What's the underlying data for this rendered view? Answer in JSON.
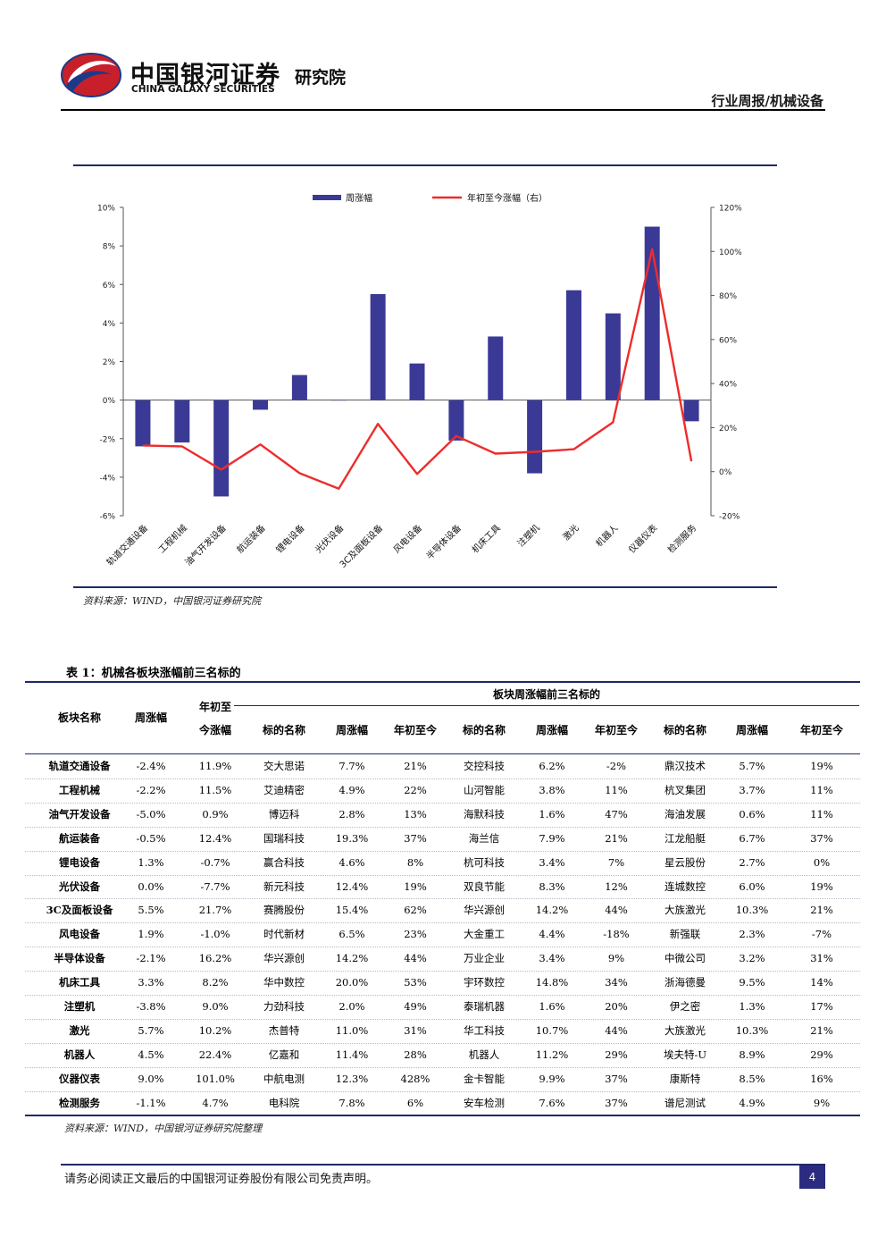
{
  "header": {
    "company_cn": "中国银河证券",
    "company_en": "CHINA GALAXY SECURITIES",
    "institute": "研究院",
    "doc_type": "行业周报/机械设备"
  },
  "chart_data": {
    "type": "bar",
    "categories": [
      "轨道交通设备",
      "工程机械",
      "油气开发设备",
      "航运装备",
      "锂电设备",
      "光伏设备",
      "3C及面板设备",
      "风电设备",
      "半导体设备",
      "机床工具",
      "注塑机",
      "激光",
      "机器人",
      "仪器仪表",
      "检测服务"
    ],
    "series": [
      {
        "name": "周涨幅",
        "type": "bar",
        "axis": "left",
        "color": "#3a3a96",
        "values": [
          -2.4,
          -2.2,
          -5.0,
          -0.5,
          1.3,
          0.0,
          5.5,
          1.9,
          -2.1,
          3.3,
          -3.8,
          5.7,
          4.5,
          9.0,
          -1.1
        ]
      },
      {
        "name": "年初至今涨幅（右）",
        "type": "line",
        "axis": "right",
        "color": "#ee2c2c",
        "values": [
          11.9,
          11.5,
          0.9,
          12.4,
          -0.7,
          -7.7,
          21.7,
          -1.0,
          16.2,
          8.2,
          9.0,
          10.2,
          22.4,
          101.0,
          4.7
        ]
      }
    ],
    "ylim": [
      -6,
      10
    ],
    "yticks": [
      "10%",
      "8%",
      "6%",
      "4%",
      "2%",
      "0%",
      "-2%",
      "-4%",
      "-6%"
    ],
    "y2lim": [
      -20,
      120
    ],
    "y2ticks": [
      "120%",
      "100%",
      "80%",
      "60%",
      "40%",
      "20%",
      "0%",
      "-20%"
    ],
    "legend": "top-center",
    "grid": false
  },
  "chart_source": "资料来源：WIND，中国银河证券研究院",
  "table": {
    "title": "表 1：机械各板块涨幅前三名标的",
    "group_header": "板块周涨幅前三名标的",
    "headers": [
      "板块名称",
      "周涨幅",
      "年初至今涨幅",
      "标的名称",
      "周涨幅",
      "年初至今",
      "标的名称",
      "周涨幅",
      "年初至今",
      "标的名称",
      "周涨幅",
      "年初至今"
    ],
    "rows": [
      [
        "轨道交通设备",
        "-2.4%",
        "11.9%",
        "交大思诺",
        "7.7%",
        "21%",
        "交控科技",
        "6.2%",
        "-2%",
        "鼎汉技术",
        "5.7%",
        "19%"
      ],
      [
        "工程机械",
        "-2.2%",
        "11.5%",
        "艾迪精密",
        "4.9%",
        "22%",
        "山河智能",
        "3.8%",
        "11%",
        "杭叉集团",
        "3.7%",
        "11%"
      ],
      [
        "油气开发设备",
        "-5.0%",
        "0.9%",
        "博迈科",
        "2.8%",
        "13%",
        "海默科技",
        "1.6%",
        "47%",
        "海油发展",
        "0.6%",
        "11%"
      ],
      [
        "航运装备",
        "-0.5%",
        "12.4%",
        "国瑞科技",
        "19.3%",
        "37%",
        "海兰信",
        "7.9%",
        "21%",
        "江龙船艇",
        "6.7%",
        "37%"
      ],
      [
        "锂电设备",
        "1.3%",
        "-0.7%",
        "赢合科技",
        "4.6%",
        "8%",
        "杭可科技",
        "3.4%",
        "7%",
        "星云股份",
        "2.7%",
        "0%"
      ],
      [
        "光伏设备",
        "0.0%",
        "-7.7%",
        "新元科技",
        "12.4%",
        "19%",
        "双良节能",
        "8.3%",
        "12%",
        "连城数控",
        "6.0%",
        "19%"
      ],
      [
        "3C及面板设备",
        "5.5%",
        "21.7%",
        "赛腾股份",
        "15.4%",
        "62%",
        "华兴源创",
        "14.2%",
        "44%",
        "大族激光",
        "10.3%",
        "21%"
      ],
      [
        "风电设备",
        "1.9%",
        "-1.0%",
        "时代新材",
        "6.5%",
        "23%",
        "大金重工",
        "4.4%",
        "-18%",
        "新强联",
        "2.3%",
        "-7%"
      ],
      [
        "半导体设备",
        "-2.1%",
        "16.2%",
        "华兴源创",
        "14.2%",
        "44%",
        "万业企业",
        "3.4%",
        "9%",
        "中微公司",
        "3.2%",
        "31%"
      ],
      [
        "机床工具",
        "3.3%",
        "8.2%",
        "华中数控",
        "20.0%",
        "53%",
        "宇环数控",
        "14.8%",
        "34%",
        "浙海德曼",
        "9.5%",
        "14%"
      ],
      [
        "注塑机",
        "-3.8%",
        "9.0%",
        "力劲科技",
        "2.0%",
        "49%",
        "泰瑞机器",
        "1.6%",
        "20%",
        "伊之密",
        "1.3%",
        "17%"
      ],
      [
        "激光",
        "5.7%",
        "10.2%",
        "杰普特",
        "11.0%",
        "31%",
        "华工科技",
        "10.7%",
        "44%",
        "大族激光",
        "10.3%",
        "21%"
      ],
      [
        "机器人",
        "4.5%",
        "22.4%",
        "亿嘉和",
        "11.4%",
        "28%",
        "机器人",
        "11.2%",
        "29%",
        "埃夫特-U",
        "8.9%",
        "29%"
      ],
      [
        "仪器仪表",
        "9.0%",
        "101.0%",
        "中航电测",
        "12.3%",
        "428%",
        "金卡智能",
        "9.9%",
        "37%",
        "康斯特",
        "8.5%",
        "16%"
      ],
      [
        "检测服务",
        "-1.1%",
        "4.7%",
        "电科院",
        "7.8%",
        "6%",
        "安车检测",
        "7.6%",
        "37%",
        "谱尼测试",
        "4.9%",
        "9%"
      ]
    ],
    "source": "资料来源：WIND，中国银河证券研究院整理"
  },
  "footer": {
    "disclaimer": "请务必阅读正文最后的中国银河证券股份有限公司免责声明。",
    "page": "4"
  }
}
